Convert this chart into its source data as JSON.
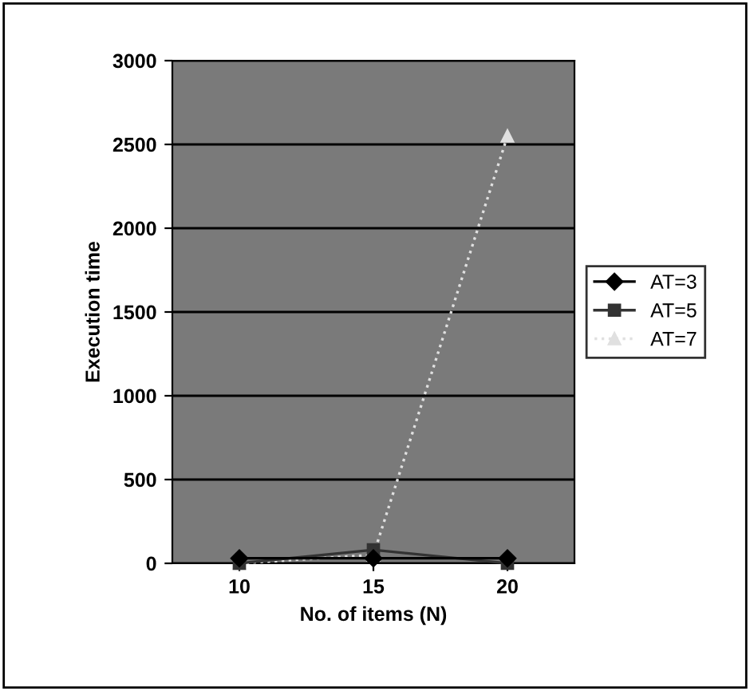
{
  "chart_data": {
    "type": "line",
    "xlabel": "No. of items (N)",
    "ylabel": "Execution time",
    "categories": [
      "10",
      "15",
      "20"
    ],
    "series": [
      {
        "name": "AT=3",
        "color": "#000000",
        "marker": "diamond",
        "line_style": "solid",
        "values": [
          30,
          30,
          30
        ]
      },
      {
        "name": "AT=5",
        "color": "#333333",
        "marker": "square",
        "line_style": "solid",
        "values": [
          0,
          80,
          0
        ]
      },
      {
        "name": "AT=7",
        "color": "#e0e0e0",
        "marker": "triangle",
        "line_style": "dotted",
        "values": [
          0,
          50,
          2550
        ]
      }
    ],
    "ylim": [
      0,
      3000
    ],
    "yticks": [
      0,
      500,
      1000,
      1500,
      2000,
      2500,
      3000
    ],
    "grid": "y",
    "legend": "right"
  }
}
